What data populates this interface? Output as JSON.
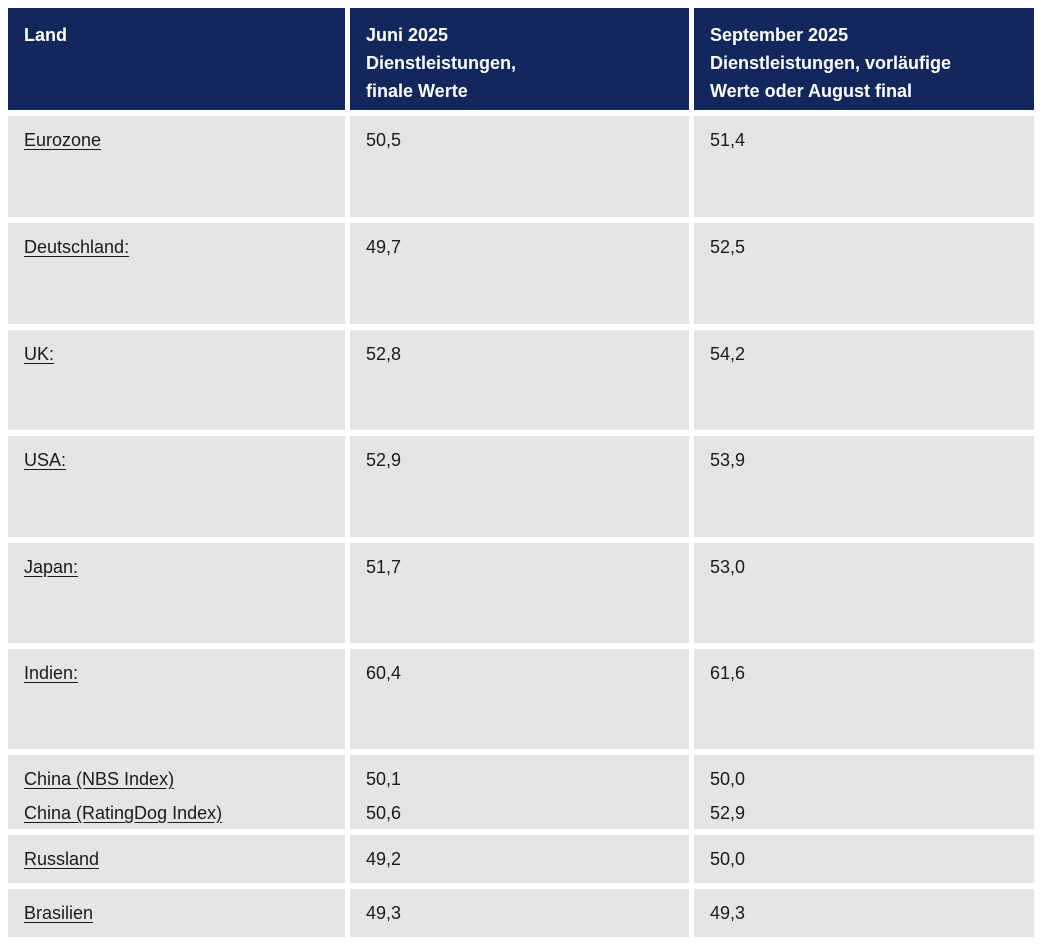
{
  "table": {
    "columns": {
      "land": "Land",
      "juni": "Juni 2025\nDienstleistungen,\nfinale Werte",
      "september": "September 2025\nDienstleistungen, vorläufige\nWerte oder August final"
    },
    "rows": [
      {
        "land": "Eurozone",
        "juni": "50,5",
        "september": "51,4"
      },
      {
        "land": "Deutschland:",
        "juni": "49,7",
        "september": "52,5"
      },
      {
        "land": "UK:",
        "juni": "52,8",
        "september": "54,2"
      },
      {
        "land": "USA:",
        "juni": "52,9",
        "september": "53,9"
      },
      {
        "land": "Japan:",
        "juni": "51,7",
        "september": "53,0"
      },
      {
        "land": "Indien:",
        "juni": "60,4",
        "september": "61,6"
      },
      {
        "land": "China (NBS Index)\nChina (RatingDog Index)",
        "juni": "50,1\n50,6",
        "september": "50,0\n52,9"
      },
      {
        "land": "Russland",
        "juni": "49,2",
        "september": "50,0"
      },
      {
        "land": "Brasilien",
        "juni": "49,3",
        "september": "49,3"
      }
    ]
  },
  "chart_data": {
    "type": "table",
    "title": "",
    "columns": [
      "Land",
      "Juni 2025 Dienstleistungen, finale Werte",
      "September 2025 Dienstleistungen, vorläufige Werte oder August final"
    ],
    "rows": [
      [
        "Eurozone",
        "50,5",
        "51,4"
      ],
      [
        "Deutschland:",
        "49,7",
        "52,5"
      ],
      [
        "UK:",
        "52,8",
        "54,2"
      ],
      [
        "USA:",
        "52,9",
        "53,9"
      ],
      [
        "Japan:",
        "51,7",
        "53,0"
      ],
      [
        "Indien:",
        "60,4",
        "61,6"
      ],
      [
        "China (NBS Index)",
        "50,1",
        "50,0"
      ],
      [
        "China (RatingDog Index)",
        "50,6",
        "52,9"
      ],
      [
        "Russland",
        "49,2",
        "50,0"
      ],
      [
        "Brasilien",
        "49,3",
        "49,3"
      ]
    ]
  },
  "colors": {
    "header_bg": "#12285c",
    "header_text": "#ffffff",
    "row_bg": "#e5e5e5",
    "body_text": "#1a1a1a"
  }
}
